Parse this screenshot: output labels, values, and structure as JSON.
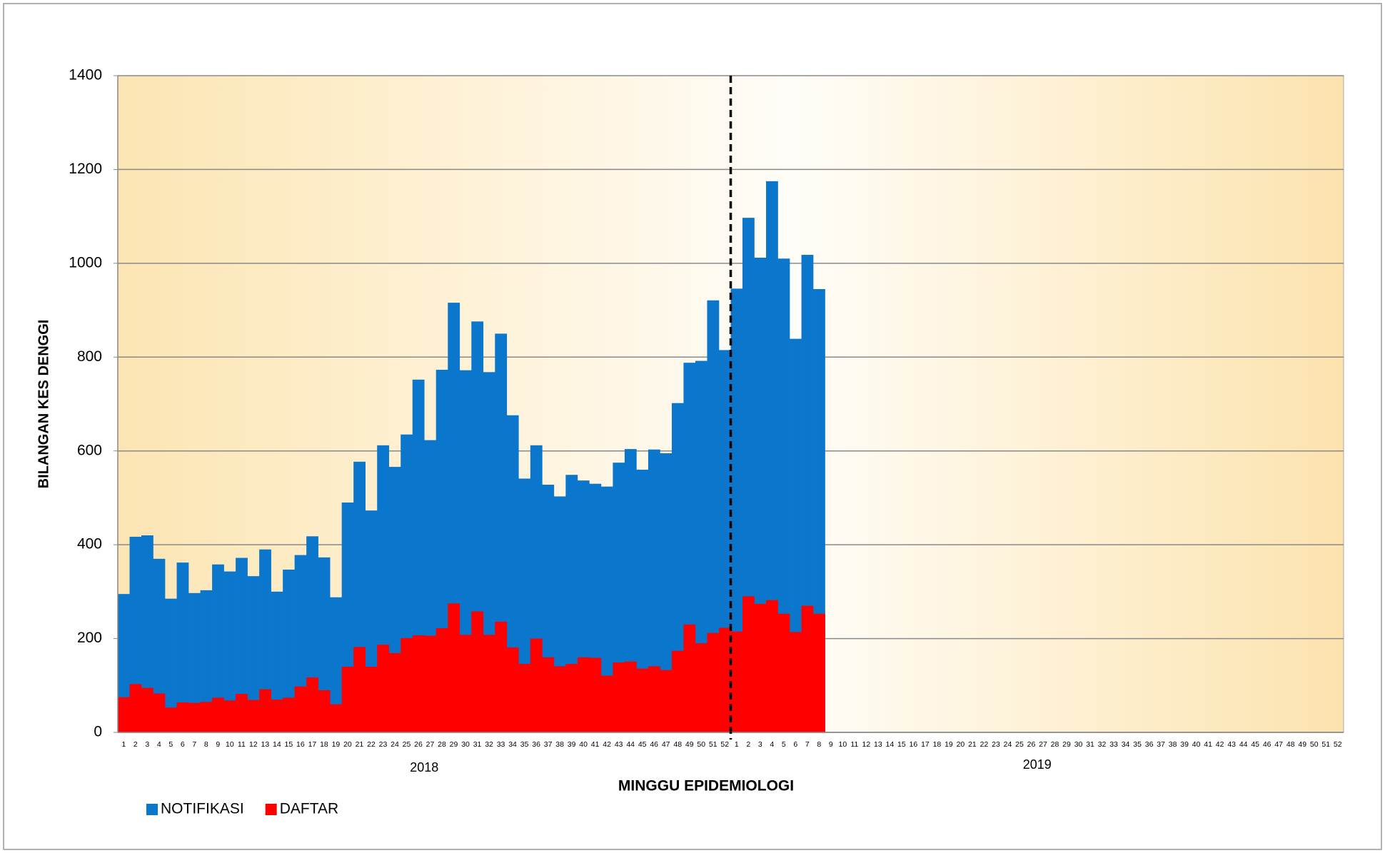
{
  "chart_data": {
    "type": "bar",
    "overlap": true,
    "categories": [
      "1",
      "2",
      "3",
      "4",
      "5",
      "6",
      "7",
      "8",
      "9",
      "10",
      "11",
      "12",
      "13",
      "14",
      "15",
      "16",
      "17",
      "18",
      "19",
      "20",
      "21",
      "22",
      "23",
      "24",
      "25",
      "26",
      "27",
      "28",
      "29",
      "30",
      "31",
      "32",
      "33",
      "34",
      "35",
      "36",
      "37",
      "38",
      "39",
      "40",
      "41",
      "42",
      "43",
      "44",
      "45",
      "46",
      "47",
      "48",
      "49",
      "50",
      "51",
      "52",
      "1",
      "2",
      "3",
      "4",
      "5",
      "6",
      "7",
      "8",
      "9",
      "10",
      "11",
      "12",
      "13",
      "14",
      "15",
      "16",
      "17",
      "18",
      "19",
      "20",
      "21",
      "22",
      "23",
      "24",
      "25",
      "26",
      "27",
      "28",
      "29",
      "30",
      "31",
      "32",
      "33",
      "34",
      "35",
      "36",
      "37",
      "38",
      "39",
      "40",
      "41",
      "42",
      "43",
      "44",
      "45",
      "46",
      "47",
      "48",
      "49",
      "50",
      "51",
      "52"
    ],
    "groups": [
      "2018",
      "2019"
    ],
    "x_label": "MINGGU EPIDEMIOLOGI",
    "y_label": "BILANGAN KES DENGGI",
    "ylim": [
      0,
      1400
    ],
    "yticks": [
      0,
      200,
      400,
      600,
      800,
      1000,
      1200,
      1400
    ],
    "grid": true,
    "legend": "bottom-left",
    "series": [
      {
        "name": "NOTIFIKASI",
        "color": "#0a77cc",
        "values": [
          295,
          417,
          420,
          370,
          285,
          362,
          297,
          303,
          358,
          343,
          372,
          333,
          390,
          300,
          347,
          378,
          418,
          373,
          288,
          490,
          577,
          473,
          612,
          566,
          635,
          752,
          623,
          773,
          916,
          772,
          876,
          768,
          850,
          676,
          541,
          612,
          528,
          503,
          549,
          537,
          530,
          524,
          575,
          604,
          560,
          603,
          595,
          702,
          788,
          792,
          921,
          815,
          946,
          1097,
          1012,
          1175,
          1010,
          839,
          1018,
          945,
          null,
          null,
          null,
          null,
          null,
          null,
          null,
          null,
          null,
          null,
          null,
          null,
          null,
          null,
          null,
          null,
          null,
          null,
          null,
          null,
          null,
          null,
          null,
          null,
          null,
          null,
          null,
          null,
          null,
          null,
          null,
          null,
          null,
          null,
          null,
          null,
          null,
          null,
          null,
          null,
          null,
          null,
          null,
          null
        ]
      },
      {
        "name": "DAFTAR",
        "color": "#ff0000",
        "values": [
          75,
          103,
          95,
          83,
          53,
          64,
          63,
          65,
          74,
          68,
          82,
          69,
          92,
          70,
          74,
          98,
          117,
          90,
          60,
          140,
          182,
          140,
          187,
          169,
          201,
          207,
          206,
          222,
          275,
          208,
          258,
          208,
          236,
          181,
          146,
          200,
          160,
          141,
          146,
          160,
          159,
          121,
          149,
          151,
          136,
          141,
          133,
          174,
          230,
          190,
          212,
          223,
          215,
          290,
          274,
          282,
          253,
          214,
          270,
          253,
          null,
          null,
          null,
          null,
          null,
          null,
          null,
          null,
          null,
          null,
          null,
          null,
          null,
          null,
          null,
          null,
          null,
          null,
          null,
          null,
          null,
          null,
          null,
          null,
          null,
          null,
          null,
          null,
          null,
          null,
          null,
          null,
          null,
          null,
          null,
          null,
          null,
          null,
          null,
          null,
          null,
          null,
          null,
          null
        ]
      }
    ]
  }
}
